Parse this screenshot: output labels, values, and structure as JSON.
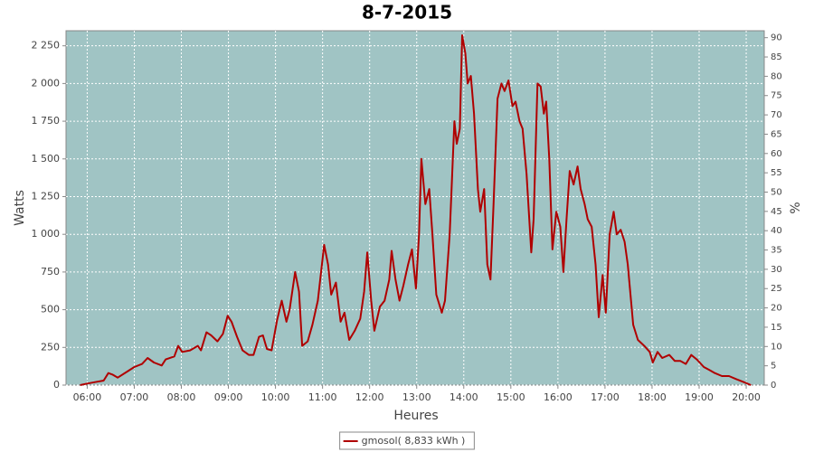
{
  "chart_data": {
    "type": "line",
    "title": "8-7-2015",
    "xlabel": "Heures",
    "ylabel": "Watts",
    "y2label": "%",
    "x": [
      "05:51",
      "06:00",
      "06:10",
      "06:21",
      "06:27",
      "06:32",
      "06:39",
      "06:51",
      "07:00",
      "07:10",
      "07:17",
      "07:25",
      "07:35",
      "07:40",
      "07:51",
      "07:56",
      "08:01",
      "08:11",
      "08:21",
      "08:25",
      "08:32",
      "08:38",
      "08:46",
      "08:53",
      "08:59",
      "09:04",
      "09:11",
      "09:18",
      "09:26",
      "09:32",
      "09:39",
      "09:44",
      "09:49",
      "09:55",
      "10:02",
      "10:08",
      "10:14",
      "10:18",
      "10:25",
      "10:30",
      "10:34",
      "10:41",
      "10:47",
      "10:54",
      "11:02",
      "11:07",
      "11:11",
      "11:17",
      "11:23",
      "11:28",
      "11:34",
      "11:41",
      "11:48",
      "11:53",
      "11:57",
      "12:02",
      "12:06",
      "12:13",
      "12:19",
      "12:25",
      "12:28",
      "12:33",
      "12:38",
      "12:43",
      "12:49",
      "12:54",
      "12:59",
      "13:03",
      "13:06",
      "13:11",
      "13:16",
      "13:20",
      "13:25",
      "13:32",
      "13:36",
      "13:42",
      "13:48",
      "13:51",
      "13:55",
      "13:58",
      "14:02",
      "14:05",
      "14:09",
      "14:13",
      "14:18",
      "14:21",
      "14:26",
      "14:30",
      "14:34",
      "14:38",
      "14:43",
      "14:48",
      "14:52",
      "14:57",
      "15:02",
      "15:06",
      "15:11",
      "15:15",
      "15:20",
      "15:26",
      "15:29",
      "15:34",
      "15:38",
      "15:42",
      "15:45",
      "15:49",
      "15:53",
      "15:58",
      "16:03",
      "16:07",
      "16:11",
      "16:15",
      "16:20",
      "16:25",
      "16:29",
      "16:34",
      "16:38",
      "16:43",
      "16:48",
      "16:52",
      "16:57",
      "17:01",
      "17:06",
      "17:11",
      "17:15",
      "17:20",
      "17:25",
      "17:29",
      "17:36",
      "17:42",
      "17:50",
      "17:57",
      "18:01",
      "18:07",
      "18:13",
      "18:22",
      "18:29",
      "18:36",
      "18:43",
      "18:50",
      "18:57",
      "19:06",
      "19:13",
      "19:20",
      "19:29",
      "19:38",
      "19:47",
      "19:57",
      "20:06"
    ],
    "series": [
      {
        "name": "gmosol( 8,833 kWh )",
        "color": "#b00000",
        "values": [
          0,
          10,
          20,
          30,
          80,
          70,
          50,
          90,
          120,
          140,
          180,
          150,
          130,
          170,
          190,
          260,
          220,
          230,
          260,
          230,
          350,
          330,
          290,
          340,
          460,
          420,
          320,
          230,
          200,
          200,
          320,
          330,
          240,
          230,
          430,
          560,
          420,
          500,
          750,
          620,
          260,
          290,
          400,
          560,
          930,
          800,
          600,
          680,
          420,
          480,
          300,
          360,
          440,
          620,
          880,
          560,
          360,
          520,
          560,
          700,
          890,
          700,
          560,
          660,
          800,
          900,
          640,
          1000,
          1500,
          1200,
          1300,
          1000,
          600,
          480,
          560,
          1000,
          1750,
          1600,
          1700,
          2320,
          2200,
          2000,
          2050,
          1800,
          1300,
          1150,
          1300,
          800,
          700,
          1200,
          1900,
          2000,
          1950,
          2020,
          1850,
          1880,
          1750,
          1700,
          1400,
          880,
          1100,
          2000,
          1980,
          1800,
          1880,
          1500,
          900,
          1150,
          1050,
          750,
          1100,
          1420,
          1330,
          1450,
          1300,
          1200,
          1100,
          1050,
          800,
          450,
          730,
          480,
          1000,
          1150,
          1000,
          1030,
          950,
          800,
          400,
          300,
          260,
          220,
          150,
          220,
          180,
          200,
          160,
          160,
          140,
          200,
          170,
          120,
          100,
          80,
          60,
          60,
          40,
          20,
          0
        ]
      }
    ],
    "xlim": [
      "05:33",
      "20:23"
    ],
    "xticks": [
      "06:00",
      "07:00",
      "08:00",
      "09:00",
      "10:00",
      "11:00",
      "12:00",
      "13:00",
      "14:00",
      "15:00",
      "16:00",
      "17:00",
      "18:00",
      "19:00",
      "20:00"
    ],
    "ylim": [
      0,
      2350
    ],
    "yticks": [
      0,
      250,
      500,
      750,
      {
        "value": 1000,
        "label": "1 000"
      },
      {
        "value": 1250,
        "label": "1 250"
      },
      {
        "value": 1500,
        "label": "1 500"
      },
      {
        "value": 1750,
        "label": "1 750"
      },
      {
        "value": 2000,
        "label": "2 000"
      },
      {
        "value": 2250,
        "label": "2 250"
      }
    ],
    "y2lim": [
      0,
      91.8
    ],
    "y2ticks": [
      0,
      5,
      10,
      15,
      20,
      25,
      30,
      35,
      40,
      45,
      50,
      55,
      60,
      65,
      70,
      75,
      80,
      85,
      90
    ],
    "grid": true,
    "plot_background": "#a0c4c4",
    "legend": "bottom"
  }
}
